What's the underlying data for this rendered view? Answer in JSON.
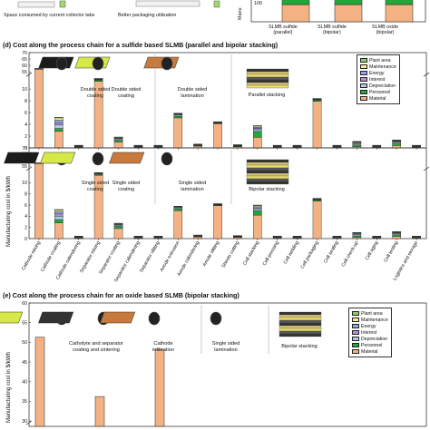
{
  "top": {
    "note_left": "Space consumed by current collector tabs",
    "note_mid": "Better packaging utilization",
    "ylabel_fragment": "Manu",
    "tick_label": "100",
    "categories": [
      "SLMB sulfide\n(parallel)",
      "SLMB sulfide\n(bipolar)",
      "SLMB oxide\n(bipolar)"
    ]
  },
  "panel_d": {
    "title": "(d) Cost along the process chain for a sulfide based SLMB (parallel and bipolar stacking)",
    "ylabel": "Manufacturing cost in $/kWh",
    "illustrations_parallel": [
      "Double sided\ncoating",
      "Double sided\ncoating",
      "Double sided\nlamination",
      "Parallel stacking"
    ],
    "illustrations_bipolar": [
      "Single sided\ncoating",
      "Single sided\ncoating",
      "Single sided\nlamination",
      "Bipolar stacking"
    ]
  },
  "panel_e": {
    "title": "(e) Cost along the process chain for an oxide based SLMB (bipolar stacking)",
    "ylabel": "Manufacturing cost in $/kWh",
    "illustrations": [
      "Catholyte and separator\ncoating and sintering",
      "Cathode\ninfiltration",
      "Single sided\nlamination",
      "Bipolar stacking"
    ]
  },
  "legend": [
    {
      "label": "Plant area",
      "color": "#8fcf6a"
    },
    {
      "label": "Maintenance",
      "color": "#f3f08a"
    },
    {
      "label": "Energy",
      "color": "#8fa7e6"
    },
    {
      "label": "Interest",
      "color": "#b68fd8"
    },
    {
      "label": "Depreciation",
      "color": "#a9cde6"
    },
    {
      "label": "Personnel",
      "color": "#22a83a"
    },
    {
      "label": "Material",
      "color": "#f4b183"
    }
  ],
  "chart_data": [
    {
      "type": "bar",
      "stacked": true,
      "title": "",
      "categories": [
        "SLMB sulfide (parallel)",
        "SLMB sulfide (bipolar)",
        "SLMB oxide (bipolar)"
      ],
      "ylim_visible": [
        90,
        108
      ],
      "series": [
        {
          "name": "Material",
          "values": [
            100,
            100,
            100
          ]
        }
      ]
    },
    {
      "type": "bar",
      "stacked": true,
      "title": "Cost along the process chain for a sulfide based SLMB (parallel stacking)",
      "ylabel": "Manufacturing cost in $/kWh",
      "ylim": [
        0,
        70
      ],
      "axis_break": [
        12,
        55
      ],
      "yticks": [
        0,
        2,
        4,
        6,
        8,
        10,
        55,
        60,
        65,
        70
      ],
      "categories": [
        "Cathode mixing",
        "Cathode coating",
        "Cathode calendering",
        "Separator mixing",
        "Separator coating",
        "Separator calendering",
        "Separator slitting",
        "Anode extrusion",
        "Anode calendering",
        "Anode slitting",
        "Sheets cutting",
        "Cell stacking",
        "Cell pressing",
        "Cell welding",
        "Cell packaging",
        "Cell sealing",
        "Cell check-up",
        "Cell aging",
        "Cell testing",
        "Logistics and storage"
      ],
      "series": [
        {
          "name": "Material",
          "values": [
            57,
            2.8,
            0.1,
            11.3,
            1.0,
            0.1,
            0.1,
            5.1,
            0.3,
            4.1,
            0.2,
            1.8,
            0.1,
            0.1,
            7.9,
            0.1,
            0.2,
            0.1,
            0.4,
            0.1
          ]
        },
        {
          "name": "Personnel",
          "values": [
            0.3,
            0.5,
            0.1,
            0.2,
            0.3,
            0.1,
            0.1,
            0.3,
            0.1,
            0.1,
            0.1,
            1.0,
            0.1,
            0.1,
            0.2,
            0.1,
            0.3,
            0.1,
            0.4,
            0.1
          ]
        },
        {
          "name": "Depreciation",
          "values": [
            0.1,
            0.6,
            0.05,
            0.1,
            0.2,
            0.05,
            0.05,
            0.2,
            0.05,
            0.05,
            0.05,
            0.3,
            0.05,
            0.05,
            0.1,
            0.05,
            0.2,
            0.05,
            0.2,
            0.05
          ]
        },
        {
          "name": "Interest",
          "values": [
            0.05,
            0.4,
            0.05,
            0.05,
            0.1,
            0.05,
            0.05,
            0.1,
            0.05,
            0.05,
            0.05,
            0.2,
            0.05,
            0.05,
            0.05,
            0.05,
            0.2,
            0.05,
            0.1,
            0.05
          ]
        },
        {
          "name": "Energy",
          "values": [
            0.05,
            0.4,
            0.05,
            0.05,
            0.1,
            0.05,
            0.05,
            0.1,
            0.05,
            0.05,
            0.05,
            0.2,
            0.05,
            0.05,
            0.05,
            0.05,
            0.1,
            0.05,
            0.1,
            0.05
          ]
        },
        {
          "name": "Maintenance",
          "values": [
            0.05,
            0.4,
            0.05,
            0.05,
            0.1,
            0.05,
            0.05,
            0.05,
            0.05,
            0.05,
            0.05,
            0.2,
            0.05,
            0.05,
            0.05,
            0.05,
            0.05,
            0.05,
            0.1,
            0.05
          ]
        },
        {
          "name": "Plant area",
          "values": [
            0.05,
            0.1,
            0.05,
            0.05,
            0.05,
            0.05,
            0.05,
            0.05,
            0.05,
            0.05,
            0.05,
            0.1,
            0.05,
            0.05,
            0.05,
            0.05,
            0.05,
            0.05,
            0.05,
            0.05
          ]
        }
      ]
    },
    {
      "type": "bar",
      "stacked": true,
      "title": "Cost along the process chain for a sulfide based SLMB (bipolar stacking)",
      "ylabel": "Manufacturing cost in $/kWh",
      "ylim": [
        0,
        70
      ],
      "axis_break": [
        12,
        55
      ],
      "yticks": [
        0,
        2,
        4,
        6,
        8,
        10,
        55,
        60,
        65,
        70
      ],
      "categories": [
        "Cathode mixing",
        "Cathode coating",
        "Cathode calendering",
        "Separator mixing",
        "Separator coating",
        "Separator calendering",
        "Separator slitting",
        "Anode extrusion",
        "Anode calendering",
        "Anode slitting",
        "Sheets cutting",
        "Cell stacking",
        "Cell pressing",
        "Cell welding",
        "Cell packaging",
        "Cell sealing",
        "Cell check-up",
        "Cell aging",
        "Cell testing",
        "Logistics and storage"
      ],
      "series": [
        {
          "name": "Material",
          "values": [
            57,
            2.8,
            0.1,
            11.3,
            1.8,
            0.1,
            0.1,
            5.0,
            0.3,
            5.9,
            0.2,
            4.2,
            0.1,
            0.1,
            6.7,
            0.1,
            0.2,
            0.1,
            0.4,
            0.1
          ]
        },
        {
          "name": "Personnel",
          "values": [
            0.3,
            0.6,
            0.1,
            0.2,
            0.4,
            0.1,
            0.1,
            0.3,
            0.1,
            0.1,
            0.1,
            0.8,
            0.1,
            0.1,
            0.2,
            0.1,
            0.3,
            0.1,
            0.3,
            0.1
          ]
        },
        {
          "name": "Depreciation",
          "values": [
            0.1,
            0.6,
            0.05,
            0.1,
            0.2,
            0.05,
            0.05,
            0.2,
            0.05,
            0.05,
            0.05,
            0.3,
            0.05,
            0.05,
            0.1,
            0.05,
            0.2,
            0.05,
            0.2,
            0.05
          ]
        },
        {
          "name": "Interest",
          "values": [
            0.05,
            0.4,
            0.05,
            0.05,
            0.1,
            0.05,
            0.05,
            0.1,
            0.05,
            0.05,
            0.05,
            0.2,
            0.05,
            0.05,
            0.05,
            0.05,
            0.2,
            0.05,
            0.1,
            0.05
          ]
        },
        {
          "name": "Energy",
          "values": [
            0.05,
            0.4,
            0.05,
            0.05,
            0.1,
            0.05,
            0.05,
            0.1,
            0.05,
            0.05,
            0.05,
            0.2,
            0.05,
            0.05,
            0.05,
            0.05,
            0.1,
            0.05,
            0.1,
            0.05
          ]
        },
        {
          "name": "Maintenance",
          "values": [
            0.05,
            0.3,
            0.05,
            0.05,
            0.1,
            0.05,
            0.05,
            0.05,
            0.05,
            0.05,
            0.05,
            0.2,
            0.05,
            0.05,
            0.05,
            0.05,
            0.05,
            0.05,
            0.1,
            0.05
          ]
        },
        {
          "name": "Plant area",
          "values": [
            0.05,
            0.1,
            0.05,
            0.05,
            0.05,
            0.05,
            0.05,
            0.05,
            0.05,
            0.05,
            0.05,
            0.1,
            0.05,
            0.05,
            0.05,
            0.05,
            0.05,
            0.05,
            0.05,
            0.05
          ]
        }
      ]
    },
    {
      "type": "bar",
      "stacked": true,
      "title": "Cost along the process chain for an oxide based SLMB (bipolar stacking)",
      "ylabel": "Manufacturing cost in $/kWh",
      "ylim": [
        30,
        60
      ],
      "axis_break": [
        0,
        31
      ],
      "yticks": [
        30,
        35,
        40,
        45,
        50,
        55,
        60
      ],
      "categories": [
        "Catholyte and separator coating and sintering",
        "Cathode infiltration",
        "Single sided lamination"
      ],
      "series": [
        {
          "name": "Material",
          "values": [
            51.3,
            36.2,
            48.1
          ]
        }
      ]
    }
  ]
}
